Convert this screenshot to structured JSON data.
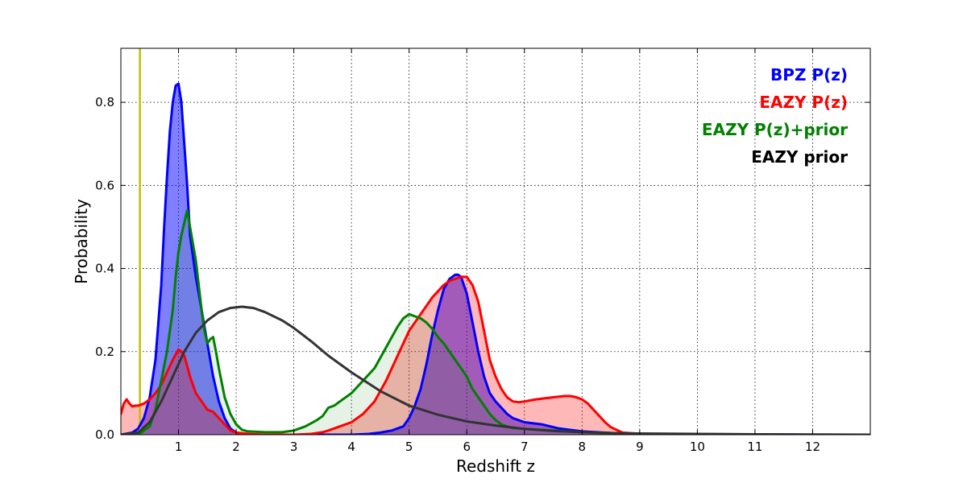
{
  "chart_data": {
    "type": "area",
    "title": "",
    "xlabel": "Redshift z",
    "ylabel": "Probability",
    "xlim": [
      0,
      13
    ],
    "ylim": [
      0,
      0.93
    ],
    "xticks": [
      "1",
      "2",
      "3",
      "4",
      "5",
      "6",
      "7",
      "8",
      "9",
      "10",
      "11",
      "12"
    ],
    "yticks": [
      "0.0",
      "0.2",
      "0.4",
      "0.6",
      "0.8"
    ],
    "grid": true,
    "legend_position": "top-right",
    "vline_x": 0.33,
    "vline_color": "#bfbf00",
    "legend": [
      {
        "label": "BPZ P(z)",
        "color": "#0000ff"
      },
      {
        "label": "EAZY P(z)",
        "color": "#ff0000"
      },
      {
        "label": "EAZY P(z)+prior",
        "color": "#008000"
      },
      {
        "label": "EAZY prior",
        "color": "#000000"
      }
    ],
    "series": [
      {
        "name": "BPZ P(z)",
        "color": "#0000ff",
        "fill": "#0000ff",
        "fill_opacity": 0.5,
        "x": [
          0,
          0.2,
          0.3,
          0.4,
          0.5,
          0.6,
          0.7,
          0.75,
          0.8,
          0.85,
          0.9,
          0.95,
          1.0,
          1.05,
          1.1,
          1.15,
          1.2,
          1.3,
          1.4,
          1.5,
          1.6,
          1.7,
          1.8,
          1.9,
          2.0,
          2.2,
          2.5,
          3.0,
          3.5,
          4.0,
          4.3,
          4.5,
          4.7,
          4.9,
          5.0,
          5.1,
          5.2,
          5.3,
          5.4,
          5.5,
          5.6,
          5.7,
          5.8,
          5.85,
          5.9,
          6.0,
          6.1,
          6.2,
          6.3,
          6.4,
          6.5,
          6.6,
          6.7,
          6.8,
          7.0,
          7.3,
          7.6,
          8.0,
          8.5,
          9.0,
          10.0,
          11.0,
          12.0,
          13.0
        ],
        "y": [
          0.0,
          0.005,
          0.015,
          0.04,
          0.09,
          0.18,
          0.36,
          0.5,
          0.62,
          0.73,
          0.8,
          0.84,
          0.845,
          0.8,
          0.7,
          0.6,
          0.48,
          0.38,
          0.3,
          0.22,
          0.14,
          0.08,
          0.04,
          0.015,
          0.005,
          0.0,
          0.0,
          0.0,
          0.0,
          0.0,
          0.002,
          0.005,
          0.01,
          0.02,
          0.04,
          0.07,
          0.11,
          0.17,
          0.24,
          0.3,
          0.35,
          0.375,
          0.385,
          0.385,
          0.38,
          0.34,
          0.27,
          0.2,
          0.14,
          0.1,
          0.08,
          0.065,
          0.05,
          0.04,
          0.03,
          0.025,
          0.015,
          0.008,
          0.004,
          0.002,
          0.001,
          0.001,
          0.0,
          0.0
        ]
      },
      {
        "name": "EAZY P(z)",
        "color": "#ff0000",
        "fill": "#ff0000",
        "fill_opacity": 0.28,
        "x": [
          0,
          0.05,
          0.1,
          0.15,
          0.2,
          0.25,
          0.3,
          0.4,
          0.5,
          0.6,
          0.7,
          0.8,
          0.9,
          1.0,
          1.05,
          1.1,
          1.15,
          1.2,
          1.3,
          1.4,
          1.5,
          1.6,
          1.7,
          1.8,
          1.9,
          2.0,
          2.2,
          2.5,
          3.0,
          3.3,
          3.5,
          3.6,
          3.8,
          4.0,
          4.2,
          4.4,
          4.6,
          4.8,
          5.0,
          5.2,
          5.4,
          5.6,
          5.7,
          5.8,
          5.9,
          6.0,
          6.1,
          6.2,
          6.3,
          6.4,
          6.5,
          6.6,
          6.7,
          6.8,
          6.9,
          7.0,
          7.2,
          7.5,
          7.7,
          7.8,
          7.9,
          8.0,
          8.1,
          8.2,
          8.3,
          8.4,
          8.5,
          8.7,
          9.0,
          10.0,
          11.0,
          12.0,
          13.0
        ],
        "y": [
          0.05,
          0.075,
          0.085,
          0.075,
          0.068,
          0.07,
          0.07,
          0.075,
          0.085,
          0.1,
          0.12,
          0.15,
          0.18,
          0.205,
          0.2,
          0.19,
          0.165,
          0.14,
          0.1,
          0.08,
          0.06,
          0.055,
          0.04,
          0.025,
          0.01,
          0.005,
          0.002,
          0.0,
          0.0,
          0.002,
          0.006,
          0.01,
          0.02,
          0.03,
          0.05,
          0.08,
          0.13,
          0.19,
          0.25,
          0.29,
          0.33,
          0.36,
          0.37,
          0.375,
          0.38,
          0.38,
          0.36,
          0.32,
          0.25,
          0.18,
          0.14,
          0.11,
          0.09,
          0.08,
          0.078,
          0.08,
          0.085,
          0.09,
          0.093,
          0.093,
          0.09,
          0.085,
          0.075,
          0.06,
          0.045,
          0.03,
          0.018,
          0.005,
          0.002,
          0.0,
          0.0,
          0.0,
          0.0
        ]
      },
      {
        "name": "EAZY P(z)+prior",
        "color": "#008000",
        "fill": "#008000",
        "fill_opacity": 0.1,
        "x": [
          0,
          0.3,
          0.5,
          0.6,
          0.7,
          0.8,
          0.9,
          0.95,
          1.0,
          1.05,
          1.1,
          1.15,
          1.2,
          1.25,
          1.3,
          1.35,
          1.4,
          1.45,
          1.5,
          1.55,
          1.6,
          1.65,
          1.7,
          1.8,
          1.9,
          2.0,
          2.1,
          2.2,
          2.5,
          2.8,
          3.0,
          3.2,
          3.4,
          3.5,
          3.6,
          3.7,
          3.8,
          4.0,
          4.2,
          4.4,
          4.6,
          4.8,
          4.9,
          5.0,
          5.1,
          5.2,
          5.3,
          5.4,
          5.5,
          5.6,
          5.7,
          5.8,
          5.9,
          6.0,
          6.1,
          6.2,
          6.3,
          6.4,
          6.5,
          6.6,
          6.7,
          6.8,
          7.0,
          7.5,
          8.0,
          8.5,
          9.0,
          10.0,
          11.0,
          12.0,
          13.0
        ],
        "y": [
          0.0,
          0.0,
          0.02,
          0.06,
          0.13,
          0.2,
          0.3,
          0.38,
          0.44,
          0.48,
          0.51,
          0.54,
          0.5,
          0.46,
          0.42,
          0.36,
          0.3,
          0.25,
          0.22,
          0.23,
          0.235,
          0.2,
          0.16,
          0.09,
          0.05,
          0.025,
          0.012,
          0.008,
          0.006,
          0.006,
          0.01,
          0.02,
          0.035,
          0.045,
          0.065,
          0.07,
          0.08,
          0.1,
          0.13,
          0.16,
          0.21,
          0.26,
          0.28,
          0.29,
          0.285,
          0.28,
          0.27,
          0.255,
          0.235,
          0.22,
          0.2,
          0.18,
          0.16,
          0.14,
          0.11,
          0.09,
          0.07,
          0.05,
          0.035,
          0.025,
          0.02,
          0.016,
          0.014,
          0.01,
          0.006,
          0.003,
          0.001,
          0.0,
          0.0,
          0.0,
          0.0
        ]
      },
      {
        "name": "EAZY prior",
        "color": "#333333",
        "fill": "none",
        "fill_opacity": 0,
        "x": [
          0.0,
          0.3,
          0.5,
          0.7,
          0.9,
          1.1,
          1.3,
          1.5,
          1.7,
          1.9,
          2.1,
          2.3,
          2.5,
          2.8,
          3.0,
          3.3,
          3.6,
          4.0,
          4.5,
          5.0,
          5.5,
          6.0,
          6.5,
          7.0,
          7.5,
          8.0,
          8.5,
          9.0,
          10.0,
          11.0,
          12.0,
          13.0
        ],
        "y": [
          0.0,
          0.005,
          0.03,
          0.08,
          0.14,
          0.2,
          0.245,
          0.275,
          0.295,
          0.305,
          0.308,
          0.305,
          0.295,
          0.275,
          0.257,
          0.225,
          0.19,
          0.15,
          0.105,
          0.07,
          0.048,
          0.032,
          0.022,
          0.014,
          0.009,
          0.006,
          0.004,
          0.003,
          0.002,
          0.001,
          0.0005,
          0.0
        ]
      }
    ]
  }
}
